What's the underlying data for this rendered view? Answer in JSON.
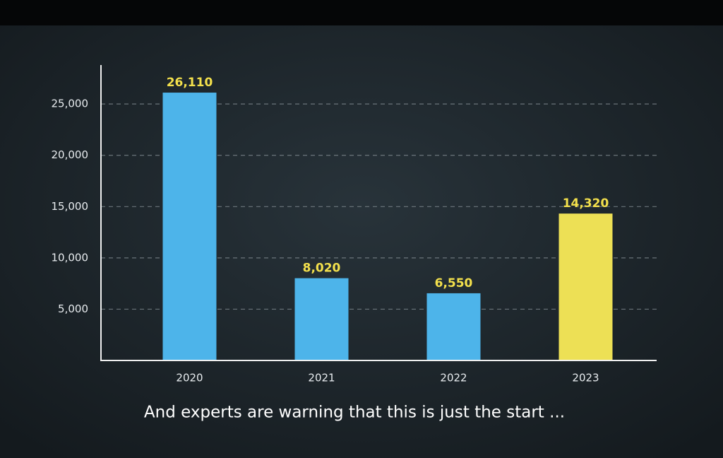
{
  "chart_data": {
    "type": "bar",
    "caption": "And experts are warning that this is just the start ...",
    "categories": [
      "2020",
      "2021",
      "2022",
      "2023"
    ],
    "values": [
      26110,
      8020,
      6550,
      14320
    ],
    "value_labels": [
      "26,110",
      "8,020",
      "6,550",
      "14,320"
    ],
    "colors": [
      "#4db4ea",
      "#4db4ea",
      "#4db4ea",
      "#ede055"
    ],
    "ylim": [
      0,
      28800
    ],
    "yticks": [
      {
        "value": 5000,
        "label": "5,000"
      },
      {
        "value": 10000,
        "label": "10,000"
      },
      {
        "value": 15000,
        "label": "15,000"
      },
      {
        "value": 20000,
        "label": "20,000"
      },
      {
        "value": 25000,
        "label": "25,000"
      }
    ],
    "grid": true
  }
}
